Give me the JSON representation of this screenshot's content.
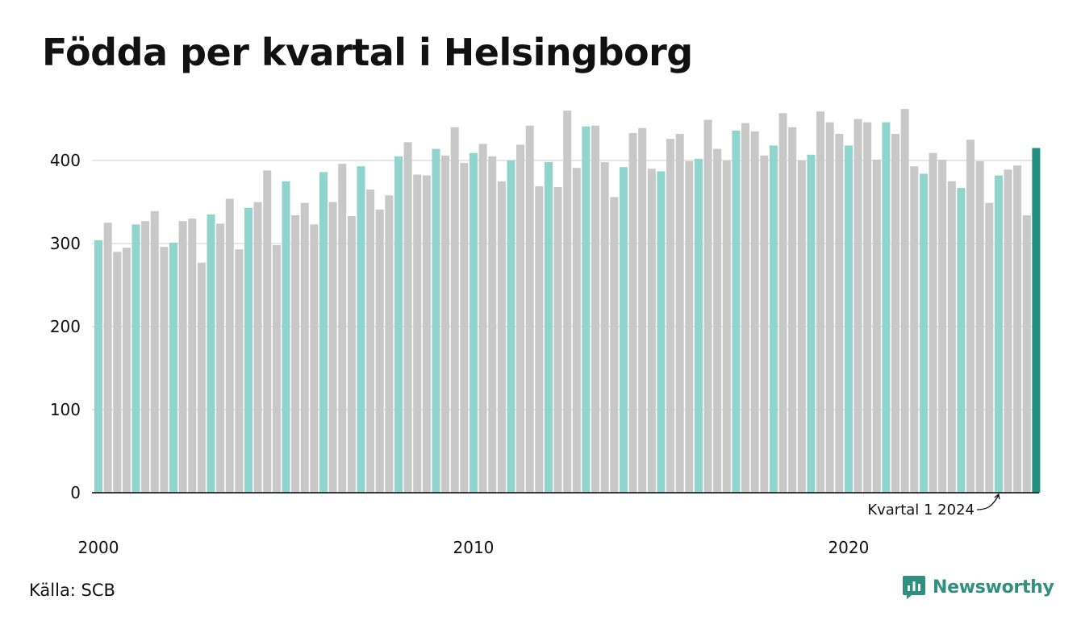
{
  "title": "Födda per kvartal i Helsingborg",
  "source": "Källa: SCB",
  "brand": {
    "name": "Newsworthy",
    "icon": "newsworthy-logo-icon"
  },
  "colors": {
    "q1": "#8fd5cd",
    "other": "#c8c8c8",
    "latest": "#1e8f80",
    "grid": "#dddddd",
    "axis": "#222222"
  },
  "chart_data": {
    "type": "bar",
    "title": "Födda per kvartal i Helsingborg",
    "xlabel": "",
    "ylabel": "",
    "ylim": [
      0,
      460
    ],
    "yticks": [
      0,
      100,
      200,
      300,
      400
    ],
    "xticks": [
      {
        "label": "2000",
        "index": 0
      },
      {
        "label": "2010",
        "index": 40
      },
      {
        "label": "2020",
        "index": 80
      }
    ],
    "start_year": 2000,
    "grid": true,
    "highlight": "Q1 bars in teal, latest quarter in dark teal",
    "annotation": {
      "text": "Kvartal 1 2024",
      "index": 96
    },
    "values": [
      304,
      325,
      290,
      295,
      323,
      327,
      339,
      296,
      301,
      327,
      330,
      277,
      335,
      324,
      354,
      293,
      343,
      350,
      388,
      298,
      375,
      334,
      349,
      323,
      386,
      350,
      396,
      333,
      393,
      365,
      341,
      358,
      405,
      422,
      383,
      382,
      414,
      406,
      440,
      397,
      409,
      420,
      405,
      375,
      400,
      419,
      442,
      369,
      398,
      368,
      460,
      391,
      441,
      442,
      398,
      356,
      392,
      433,
      439,
      390,
      387,
      426,
      432,
      399,
      402,
      449,
      414,
      400,
      436,
      445,
      435,
      406,
      418,
      457,
      440,
      400,
      407,
      459,
      446,
      432,
      418,
      450,
      446,
      401,
      446,
      432,
      462,
      393,
      384,
      409,
      401,
      375,
      367,
      425,
      399,
      349,
      382,
      389,
      394,
      334,
      415
    ]
  }
}
